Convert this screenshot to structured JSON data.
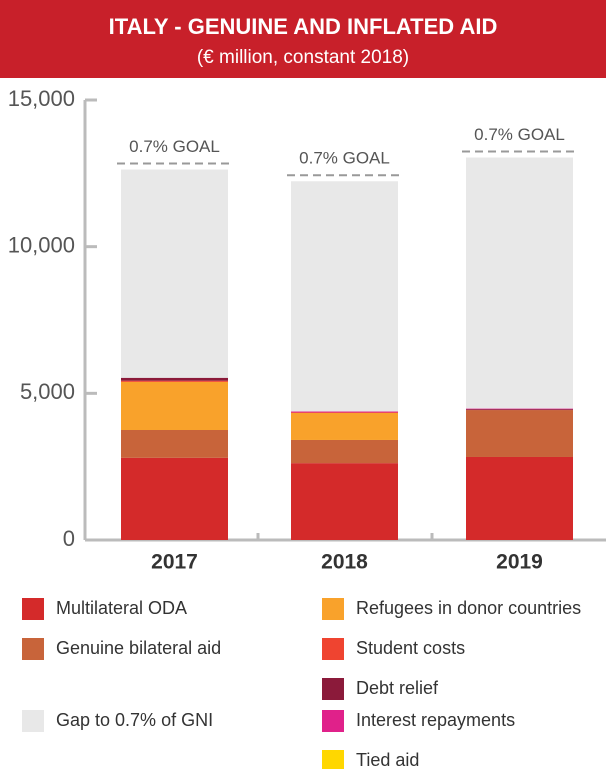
{
  "chart_data": {
    "type": "stacked_bar",
    "title": "ITALY - GENUINE AND INFLATED AID",
    "subtitle": "(€ million, constant 2018)",
    "categories": [
      "2017",
      "2018",
      "2019"
    ],
    "series": [
      {
        "name": "Multilateral ODA",
        "color": "#d42a2a",
        "values": [
          2800,
          2620,
          2830
        ]
      },
      {
        "name": "Genuine bilateral aid",
        "color": "#c8643a",
        "values": [
          950,
          790,
          1600
        ]
      },
      {
        "name": "Refugees in donor countries",
        "color": "#f9a22b",
        "values": [
          1640,
          920,
          0
        ]
      },
      {
        "name": "Student costs",
        "color": "#ef4430",
        "values": [
          40,
          20,
          0
        ]
      },
      {
        "name": "Debt relief",
        "color": "#8b1a3a",
        "values": [
          100,
          0,
          30
        ]
      },
      {
        "name": "Interest repayments",
        "color": "#e0218a",
        "values": [
          0,
          30,
          20
        ]
      },
      {
        "name": "Tied aid",
        "color": "#ffd700",
        "values": [
          0,
          0,
          0
        ]
      },
      {
        "name": "Gap to 0.7% of GNI",
        "color": "#e8e8e8",
        "values": [
          7100,
          7850,
          8560
        ]
      }
    ],
    "annotations": [
      "0.7% GOAL",
      "0.7% GOAL",
      "0.7% GOAL"
    ],
    "ylim": [
      0,
      15000
    ],
    "yticks": [
      0,
      {
        "value": 5000,
        "label": "5,000"
      },
      {
        "value": 10000,
        "label": "10,000"
      },
      {
        "value": 15000,
        "label": "15,000"
      }
    ],
    "banner_color": "#c8202a"
  }
}
